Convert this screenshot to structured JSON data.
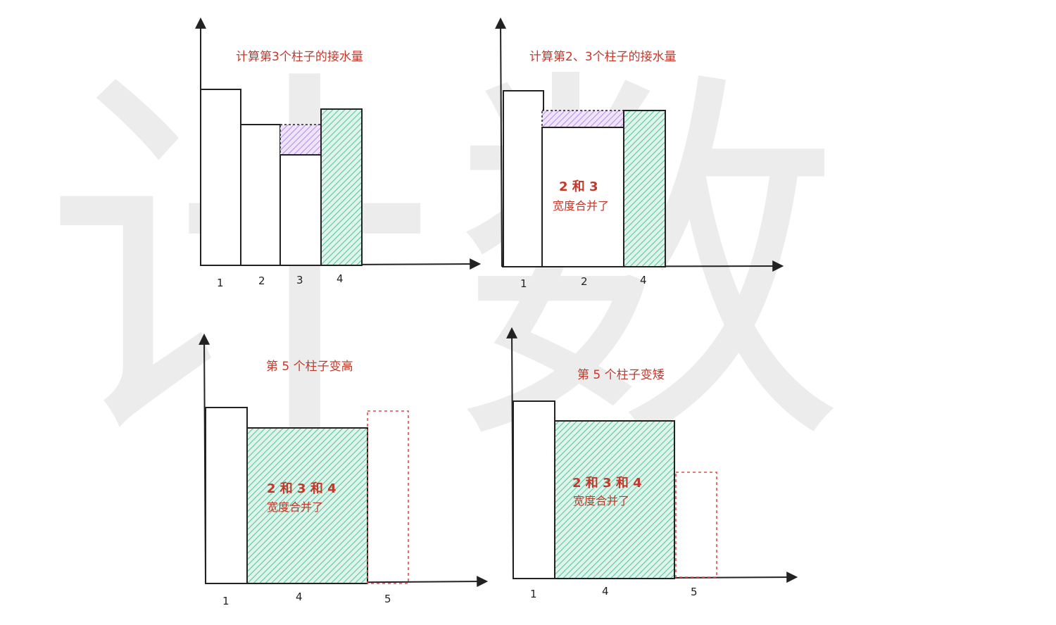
{
  "watermark": {
    "text1": "计",
    "text2": "数"
  },
  "colors": {
    "ink": "#222222",
    "title": "#c0392b",
    "green_hatch": "#5cc6a0",
    "green_fill": "#dff5ec",
    "purple_hatch": "#b48be0",
    "purple_fill": "#efe4fb",
    "dashed_red": "#d9534f"
  },
  "panels": {
    "p1": {
      "title": "计算第3个柱子的接水量",
      "x_labels": [
        "1",
        "2",
        "3",
        "4"
      ]
    },
    "p2": {
      "title": "计算第2、3个柱子的接水量",
      "x_labels": [
        "1",
        "2",
        "4"
      ],
      "note_line1": "2 和 3",
      "note_line2": "宽度合并了"
    },
    "p3": {
      "title": "第 5 个柱子变高",
      "x_labels": [
        "1",
        "4",
        "5"
      ],
      "note_line1": "2 和 3 和 4",
      "note_line2": "宽度合并了"
    },
    "p4": {
      "title": "第 5 个柱子变矮",
      "x_labels": [
        "1",
        "4",
        "5"
      ],
      "note_line1": "2 和 3 和 4",
      "note_line2": "宽度合并了"
    }
  }
}
